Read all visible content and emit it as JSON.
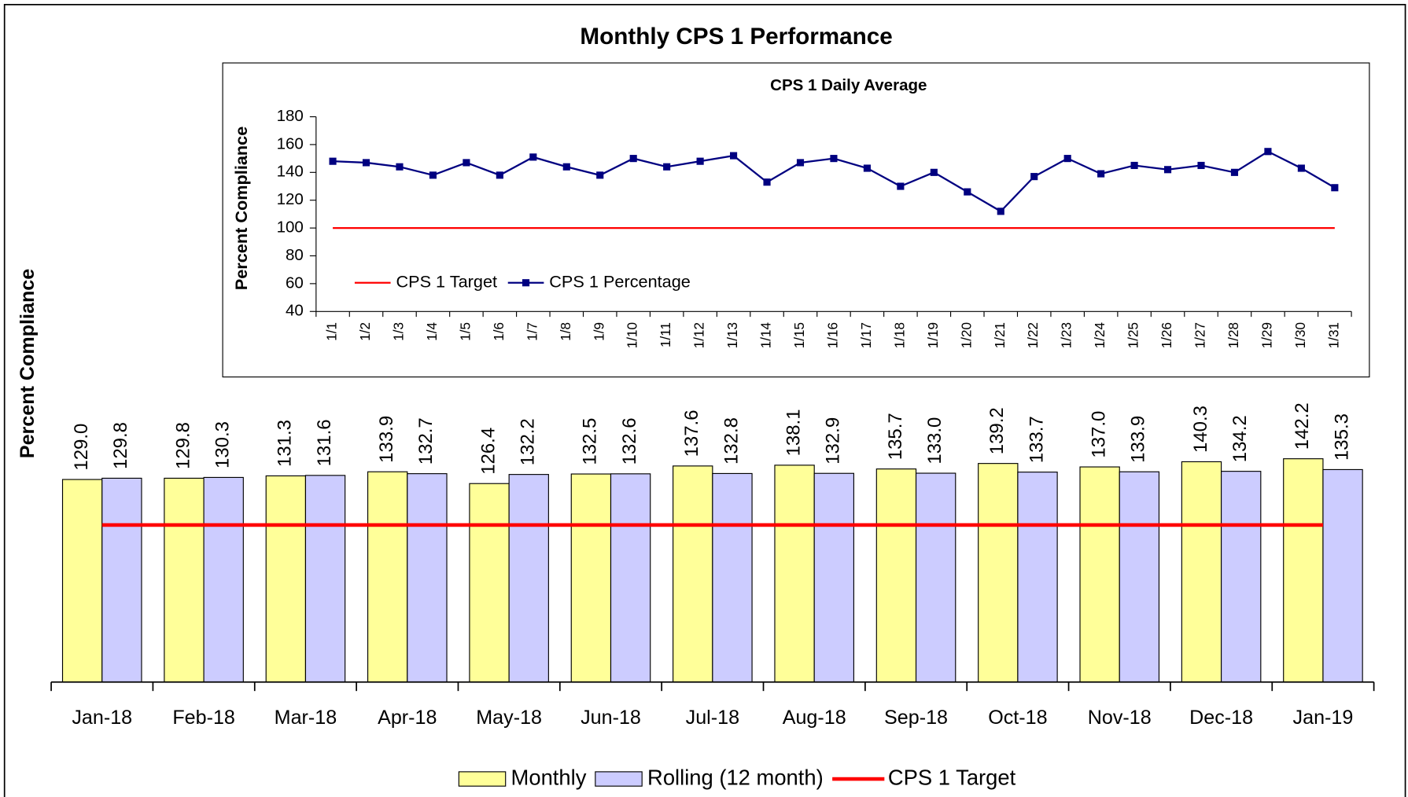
{
  "chart_data": [
    {
      "type": "bar",
      "title": "Monthly CPS 1 Performance",
      "y_label": "Percent Compliance",
      "categories": [
        "Jan-18",
        "Feb-18",
        "Mar-18",
        "Apr-18",
        "May-18",
        "Jun-18",
        "Jul-18",
        "Aug-18",
        "Sep-18",
        "Oct-18",
        "Nov-18",
        "Dec-18",
        "Jan-19"
      ],
      "series": [
        {
          "name": "Monthly",
          "color": "#ffff99",
          "values": [
            129.0,
            129.8,
            131.3,
            133.9,
            126.4,
            132.5,
            137.6,
            138.1,
            135.7,
            139.2,
            137.0,
            140.3,
            142.2
          ],
          "value_labels": [
            "129.0",
            "129.8",
            "131.3",
            "133.9",
            "126.4",
            "132.5",
            "137.6",
            "138.1",
            "135.7",
            "139.2",
            "137.0",
            "140.3",
            "142.2"
          ]
        },
        {
          "name": "Rolling (12 month)",
          "color": "#ccccff",
          "values": [
            129.8,
            130.3,
            131.6,
            132.7,
            132.2,
            132.6,
            132.8,
            132.9,
            133.0,
            133.7,
            133.9,
            134.2,
            135.3
          ],
          "value_labels": [
            "129.8",
            "130.3",
            "131.6",
            "132.7",
            "132.2",
            "132.6",
            "132.8",
            "132.9",
            "133.0",
            "133.7",
            "133.9",
            "134.2",
            "135.3"
          ]
        },
        {
          "name": "CPS 1 Target",
          "type": "line",
          "color": "#ff0000",
          "values": [
            100,
            100,
            100,
            100,
            100,
            100,
            100,
            100,
            100,
            100,
            100,
            100,
            100
          ]
        }
      ],
      "ylim": [
        0,
        200
      ],
      "legend": "bottom"
    },
    {
      "type": "line",
      "title": "CPS 1 Daily Average",
      "y_label": "Percent Compliance",
      "categories": [
        "1/1",
        "1/2",
        "1/3",
        "1/4",
        "1/5",
        "1/6",
        "1/7",
        "1/8",
        "1/9",
        "1/10",
        "1/11",
        "1/12",
        "1/13",
        "1/14",
        "1/15",
        "1/16",
        "1/17",
        "1/18",
        "1/19",
        "1/20",
        "1/21",
        "1/22",
        "1/23",
        "1/24",
        "1/25",
        "1/26",
        "1/27",
        "1/28",
        "1/29",
        "1/30",
        "1/31"
      ],
      "series": [
        {
          "name": "CPS 1 Target",
          "color": "#ff0000",
          "marker": false,
          "values": [
            100,
            100,
            100,
            100,
            100,
            100,
            100,
            100,
            100,
            100,
            100,
            100,
            100,
            100,
            100,
            100,
            100,
            100,
            100,
            100,
            100,
            100,
            100,
            100,
            100,
            100,
            100,
            100,
            100,
            100,
            100
          ]
        },
        {
          "name": "CPS 1 Percentage",
          "color": "#000080",
          "marker": true,
          "values": [
            148,
            147,
            144,
            138,
            147,
            138,
            151,
            144,
            138,
            150,
            144,
            148,
            152,
            133,
            147,
            150,
            143,
            130,
            140,
            126,
            112,
            137,
            150,
            139,
            145,
            142,
            145,
            140,
            155,
            143,
            129
          ]
        }
      ],
      "ylim": [
        40,
        180
      ],
      "yticks": [
        40,
        60,
        80,
        100,
        120,
        140,
        160,
        180
      ],
      "legend": "lower left"
    }
  ]
}
